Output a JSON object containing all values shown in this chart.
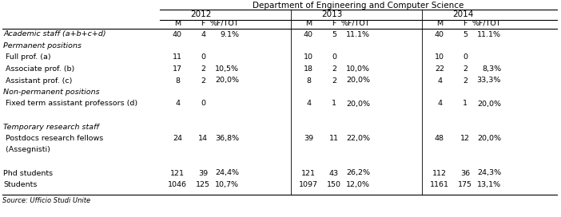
{
  "title": "Department of Engineering and Computer Science",
  "source": "Source: Ufficio Studi Unite",
  "rows": [
    {
      "label": "Academic staff (a+b+c+d)",
      "style": "italic",
      "values": [
        "40",
        "4",
        "9.1%",
        "40",
        "5",
        "11.1%",
        "40",
        "5",
        "11.1%"
      ]
    },
    {
      "label": "Permanent positions",
      "style": "italic",
      "values": [
        "",
        "",
        "",
        "",
        "",
        "",
        "",
        "",
        ""
      ]
    },
    {
      "label": " Full prof. (a)",
      "style": "normal",
      "values": [
        "11",
        "0",
        "",
        "10",
        "0",
        "",
        "10",
        "0",
        ""
      ]
    },
    {
      "label": " Associate prof. (b)",
      "style": "normal",
      "values": [
        "17",
        "2",
        "10,5%",
        "18",
        "2",
        "10,0%",
        "22",
        "2",
        "8,3%"
      ]
    },
    {
      "label": " Assistant prof. (c)",
      "style": "normal",
      "values": [
        "8",
        "2",
        "20,0%",
        "8",
        "2",
        "20,0%",
        "4",
        "2",
        "33,3%"
      ]
    },
    {
      "label": "Non-permanent positions",
      "style": "italic",
      "values": [
        "",
        "",
        "",
        "",
        "",
        "",
        "",
        "",
        ""
      ]
    },
    {
      "label": " Fixed term assistant professors (d)",
      "style": "normal",
      "values": [
        "4",
        "0",
        "",
        "4",
        "1",
        "20,0%",
        "4",
        "1",
        "20,0%"
      ]
    },
    {
      "label": "",
      "style": "normal",
      "values": [
        "",
        "",
        "",
        "",
        "",
        "",
        "",
        "",
        ""
      ]
    },
    {
      "label": "Temporary research staff",
      "style": "italic",
      "values": [
        "",
        "",
        "",
        "",
        "",
        "",
        "",
        "",
        ""
      ]
    },
    {
      "label": " Postdocs research fellows",
      "style": "normal",
      "values": [
        "24",
        "14",
        "36,8%",
        "39",
        "11",
        "22,0%",
        "48",
        "12",
        "20,0%"
      ]
    },
    {
      "label": " (Assegnisti)",
      "style": "normal",
      "values": [
        "",
        "",
        "",
        "",
        "",
        "",
        "",
        "",
        ""
      ]
    },
    {
      "label": "",
      "style": "normal",
      "values": [
        "",
        "",
        "",
        "",
        "",
        "",
        "",
        "",
        ""
      ]
    },
    {
      "label": "Phd students",
      "style": "normal",
      "values": [
        "121",
        "39",
        "24,4%",
        "121",
        "43",
        "26,2%",
        "112",
        "36",
        "24,3%"
      ]
    },
    {
      "label": "Students",
      "style": "normal",
      "values": [
        "1046",
        "125",
        "10,7%",
        "1097",
        "150",
        "12,0%",
        "1161",
        "175",
        "13,1%"
      ]
    }
  ],
  "font_size": 6.8,
  "header_font_size": 7.5,
  "small_font_size": 6.0
}
